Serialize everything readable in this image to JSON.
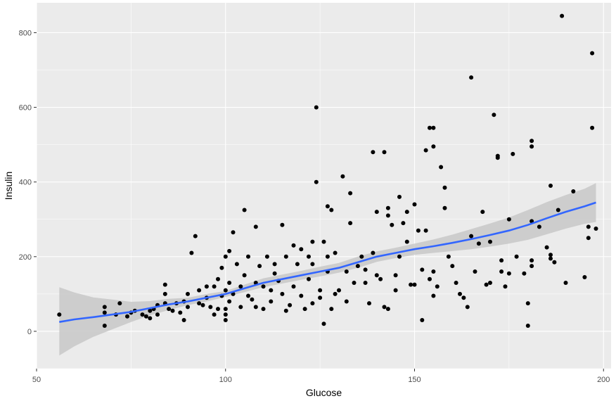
{
  "chart_data": {
    "type": "scatter",
    "xlabel": "Glucose",
    "ylabel": "Insulin",
    "xlim": [
      50,
      202
    ],
    "ylim": [
      -100,
      880
    ],
    "xticks": [
      50,
      100,
      150,
      200
    ],
    "yticks": [
      0,
      200,
      400,
      600,
      800
    ],
    "grid": true,
    "colors": {
      "panel": "#ebebeb",
      "grid": "#ffffff",
      "point": "#000000",
      "smooth_line": "#3366ff",
      "confidence_band": "#c8c8c8"
    },
    "points": [
      [
        56,
        45
      ],
      [
        68,
        15
      ],
      [
        68,
        50
      ],
      [
        68,
        65
      ],
      [
        71,
        45
      ],
      [
        72,
        75
      ],
      [
        74,
        40
      ],
      [
        75,
        50
      ],
      [
        76,
        55
      ],
      [
        78,
        45
      ],
      [
        79,
        40
      ],
      [
        80,
        55
      ],
      [
        80,
        35
      ],
      [
        81,
        60
      ],
      [
        82,
        70
      ],
      [
        82,
        45
      ],
      [
        84,
        75
      ],
      [
        84,
        100
      ],
      [
        84,
        125
      ],
      [
        85,
        60
      ],
      [
        86,
        55
      ],
      [
        87,
        75
      ],
      [
        88,
        50
      ],
      [
        89,
        30
      ],
      [
        89,
        80
      ],
      [
        90,
        65
      ],
      [
        90,
        100
      ],
      [
        91,
        210
      ],
      [
        92,
        255
      ],
      [
        93,
        75
      ],
      [
        93,
        110
      ],
      [
        94,
        70
      ],
      [
        95,
        120
      ],
      [
        95,
        90
      ],
      [
        96,
        65
      ],
      [
        97,
        120
      ],
      [
        97,
        45
      ],
      [
        98,
        140
      ],
      [
        98,
        60
      ],
      [
        99,
        170
      ],
      [
        99,
        95
      ],
      [
        100,
        200
      ],
      [
        100,
        110
      ],
      [
        100,
        60
      ],
      [
        100,
        45
      ],
      [
        100,
        30
      ],
      [
        101,
        215
      ],
      [
        101,
        130
      ],
      [
        101,
        80
      ],
      [
        102,
        265
      ],
      [
        102,
        100
      ],
      [
        103,
        180
      ],
      [
        104,
        120
      ],
      [
        104,
        65
      ],
      [
        105,
        325
      ],
      [
        105,
        150
      ],
      [
        106,
        200
      ],
      [
        106,
        95
      ],
      [
        107,
        85
      ],
      [
        108,
        280
      ],
      [
        108,
        130
      ],
      [
        108,
        65
      ],
      [
        109,
        175
      ],
      [
        110,
        120
      ],
      [
        110,
        60
      ],
      [
        111,
        200
      ],
      [
        112,
        110
      ],
      [
        112,
        80
      ],
      [
        113,
        155
      ],
      [
        113,
        180
      ],
      [
        114,
        135
      ],
      [
        115,
        285
      ],
      [
        115,
        100
      ],
      [
        116,
        200
      ],
      [
        116,
        55
      ],
      [
        117,
        70
      ],
      [
        118,
        230
      ],
      [
        118,
        120
      ],
      [
        119,
        180
      ],
      [
        120,
        95
      ],
      [
        120,
        220
      ],
      [
        121,
        60
      ],
      [
        122,
        200
      ],
      [
        122,
        140
      ],
      [
        123,
        240
      ],
      [
        123,
        180
      ],
      [
        123,
        75
      ],
      [
        124,
        600
      ],
      [
        124,
        400
      ],
      [
        125,
        110
      ],
      [
        125,
        90
      ],
      [
        126,
        240
      ],
      [
        126,
        20
      ],
      [
        127,
        335
      ],
      [
        127,
        200
      ],
      [
        127,
        160
      ],
      [
        128,
        325
      ],
      [
        128,
        60
      ],
      [
        129,
        210
      ],
      [
        129,
        100
      ],
      [
        130,
        110
      ],
      [
        131,
        415
      ],
      [
        132,
        160
      ],
      [
        132,
        80
      ],
      [
        133,
        290
      ],
      [
        133,
        370
      ],
      [
        134,
        130
      ],
      [
        135,
        175
      ],
      [
        136,
        200
      ],
      [
        137,
        165
      ],
      [
        137,
        130
      ],
      [
        138,
        75
      ],
      [
        139,
        480
      ],
      [
        139,
        210
      ],
      [
        140,
        320
      ],
      [
        140,
        150
      ],
      [
        141,
        140
      ],
      [
        142,
        480
      ],
      [
        142,
        65
      ],
      [
        143,
        330
      ],
      [
        143,
        310
      ],
      [
        143,
        60
      ],
      [
        144,
        285
      ],
      [
        145,
        150
      ],
      [
        145,
        110
      ],
      [
        146,
        360
      ],
      [
        146,
        200
      ],
      [
        147,
        290
      ],
      [
        148,
        320
      ],
      [
        148,
        240
      ],
      [
        149,
        125
      ],
      [
        150,
        340
      ],
      [
        150,
        125
      ],
      [
        151,
        270
      ],
      [
        152,
        30
      ],
      [
        152,
        165
      ],
      [
        153,
        485
      ],
      [
        153,
        270
      ],
      [
        154,
        545
      ],
      [
        154,
        140
      ],
      [
        155,
        545
      ],
      [
        155,
        495
      ],
      [
        155,
        160
      ],
      [
        155,
        95
      ],
      [
        156,
        120
      ],
      [
        157,
        440
      ],
      [
        158,
        385
      ],
      [
        158,
        330
      ],
      [
        159,
        200
      ],
      [
        160,
        175
      ],
      [
        161,
        130
      ],
      [
        162,
        100
      ],
      [
        163,
        90
      ],
      [
        164,
        65
      ],
      [
        165,
        680
      ],
      [
        165,
        255
      ],
      [
        166,
        160
      ],
      [
        167,
        235
      ],
      [
        168,
        320
      ],
      [
        169,
        125
      ],
      [
        170,
        240
      ],
      [
        170,
        130
      ],
      [
        171,
        580
      ],
      [
        172,
        470
      ],
      [
        172,
        465
      ],
      [
        173,
        190
      ],
      [
        173,
        160
      ],
      [
        174,
        120
      ],
      [
        175,
        300
      ],
      [
        175,
        155
      ],
      [
        176,
        475
      ],
      [
        177,
        200
      ],
      [
        179,
        155
      ],
      [
        180,
        15
      ],
      [
        180,
        75
      ],
      [
        181,
        510
      ],
      [
        181,
        495
      ],
      [
        181,
        190
      ],
      [
        181,
        175
      ],
      [
        181,
        295
      ],
      [
        183,
        280
      ],
      [
        185,
        225
      ],
      [
        186,
        390
      ],
      [
        186,
        205
      ],
      [
        186,
        195
      ],
      [
        187,
        185
      ],
      [
        188,
        325
      ],
      [
        189,
        845
      ],
      [
        190,
        130
      ],
      [
        192,
        375
      ],
      [
        195,
        145
      ],
      [
        196,
        280
      ],
      [
        196,
        250
      ],
      [
        197,
        745
      ],
      [
        197,
        545
      ],
      [
        198,
        275
      ]
    ],
    "smooth": {
      "x": [
        56,
        60,
        65,
        70,
        75,
        80,
        85,
        90,
        95,
        100,
        105,
        110,
        115,
        120,
        125,
        130,
        135,
        140,
        145,
        150,
        155,
        160,
        165,
        170,
        175,
        180,
        185,
        190,
        195,
        198
      ],
      "y": [
        25,
        32,
        38,
        45,
        52,
        62,
        72,
        80,
        90,
        100,
        115,
        130,
        140,
        150,
        160,
        170,
        185,
        200,
        210,
        220,
        228,
        237,
        247,
        258,
        270,
        285,
        303,
        320,
        335,
        345
      ],
      "lower": [
        -65,
        -40,
        -15,
        5,
        25,
        43,
        57,
        70,
        80,
        92,
        105,
        118,
        128,
        138,
        147,
        157,
        170,
        186,
        196,
        205,
        210,
        215,
        220,
        227,
        235,
        245,
        260,
        275,
        288,
        293
      ],
      "upper": [
        118,
        104,
        91,
        85,
        79,
        81,
        87,
        90,
        100,
        108,
        125,
        142,
        152,
        162,
        173,
        183,
        200,
        214,
        224,
        235,
        246,
        259,
        274,
        289,
        305,
        325,
        346,
        365,
        382,
        397
      ]
    }
  }
}
